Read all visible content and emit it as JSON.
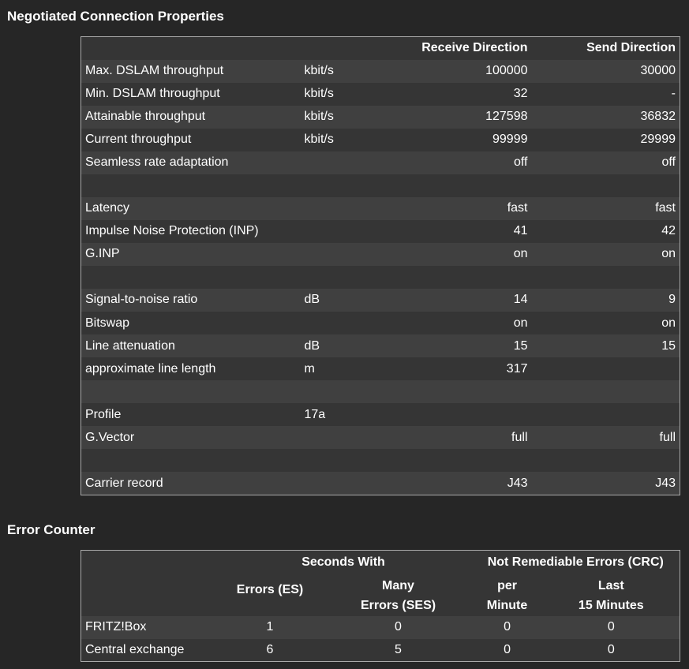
{
  "negotiated": {
    "title": "Negotiated Connection Properties",
    "header": {
      "receive": "Receive Direction",
      "send": "Send Direction"
    },
    "rows": [
      {
        "label": "Max. DSLAM throughput",
        "unit": "kbit/s",
        "receive": "100000",
        "send": "30000"
      },
      {
        "label": "Min. DSLAM throughput",
        "unit": "kbit/s",
        "receive": "32",
        "send": "-"
      },
      {
        "label": "Attainable throughput",
        "unit": "kbit/s",
        "receive": "127598",
        "send": "36832"
      },
      {
        "label": "Current throughput",
        "unit": "kbit/s",
        "receive": "99999",
        "send": "29999"
      },
      {
        "label": "Seamless rate adaptation",
        "unit": "",
        "receive": "off",
        "send": "off"
      },
      {
        "label": "",
        "unit": "",
        "receive": "",
        "send": ""
      },
      {
        "label": "Latency",
        "unit": "",
        "receive": "fast",
        "send": "fast"
      },
      {
        "label": "Impulse Noise Protection (INP)",
        "unit": "",
        "receive": "41",
        "send": "42"
      },
      {
        "label": "G.INP",
        "unit": "",
        "receive": "on",
        "send": "on"
      },
      {
        "label": "",
        "unit": "",
        "receive": "",
        "send": ""
      },
      {
        "label": "Signal-to-noise ratio",
        "unit": "dB",
        "receive": "14",
        "send": "9"
      },
      {
        "label": "Bitswap",
        "unit": "",
        "receive": "on",
        "send": "on"
      },
      {
        "label": "Line attenuation",
        "unit": "dB",
        "receive": "15",
        "send": "15"
      },
      {
        "label": "approximate line length",
        "unit": "m",
        "receive": "317",
        "send": ""
      },
      {
        "label": "",
        "unit": "",
        "receive": "",
        "send": ""
      },
      {
        "label": "Profile",
        "unit": "17a",
        "receive": "",
        "send": ""
      },
      {
        "label": "G.Vector",
        "unit": "",
        "receive": "full",
        "send": "full"
      },
      {
        "label": "",
        "unit": "",
        "receive": "",
        "send": ""
      },
      {
        "label": "Carrier record",
        "unit": "",
        "receive": "J43",
        "send": "J43"
      }
    ]
  },
  "errors": {
    "title": "Error Counter",
    "group_headers": {
      "seconds_with": "Seconds With",
      "crc": "Not Remediable Errors (CRC)"
    },
    "sub_headers": {
      "es": "Errors (ES)",
      "ses_line1": "Many",
      "ses_line2": "Errors (SES)",
      "per_min_line1": "per",
      "per_min_line2": "Minute",
      "last15_line1": "Last",
      "last15_line2": "15 Minutes"
    },
    "rows": [
      {
        "label": "FRITZ!Box",
        "es": "1",
        "ses": "0",
        "per_min": "0",
        "last15": "0"
      },
      {
        "label": "Central exchange",
        "es": "6",
        "ses": "5",
        "per_min": "0",
        "last15": "0"
      }
    ]
  }
}
